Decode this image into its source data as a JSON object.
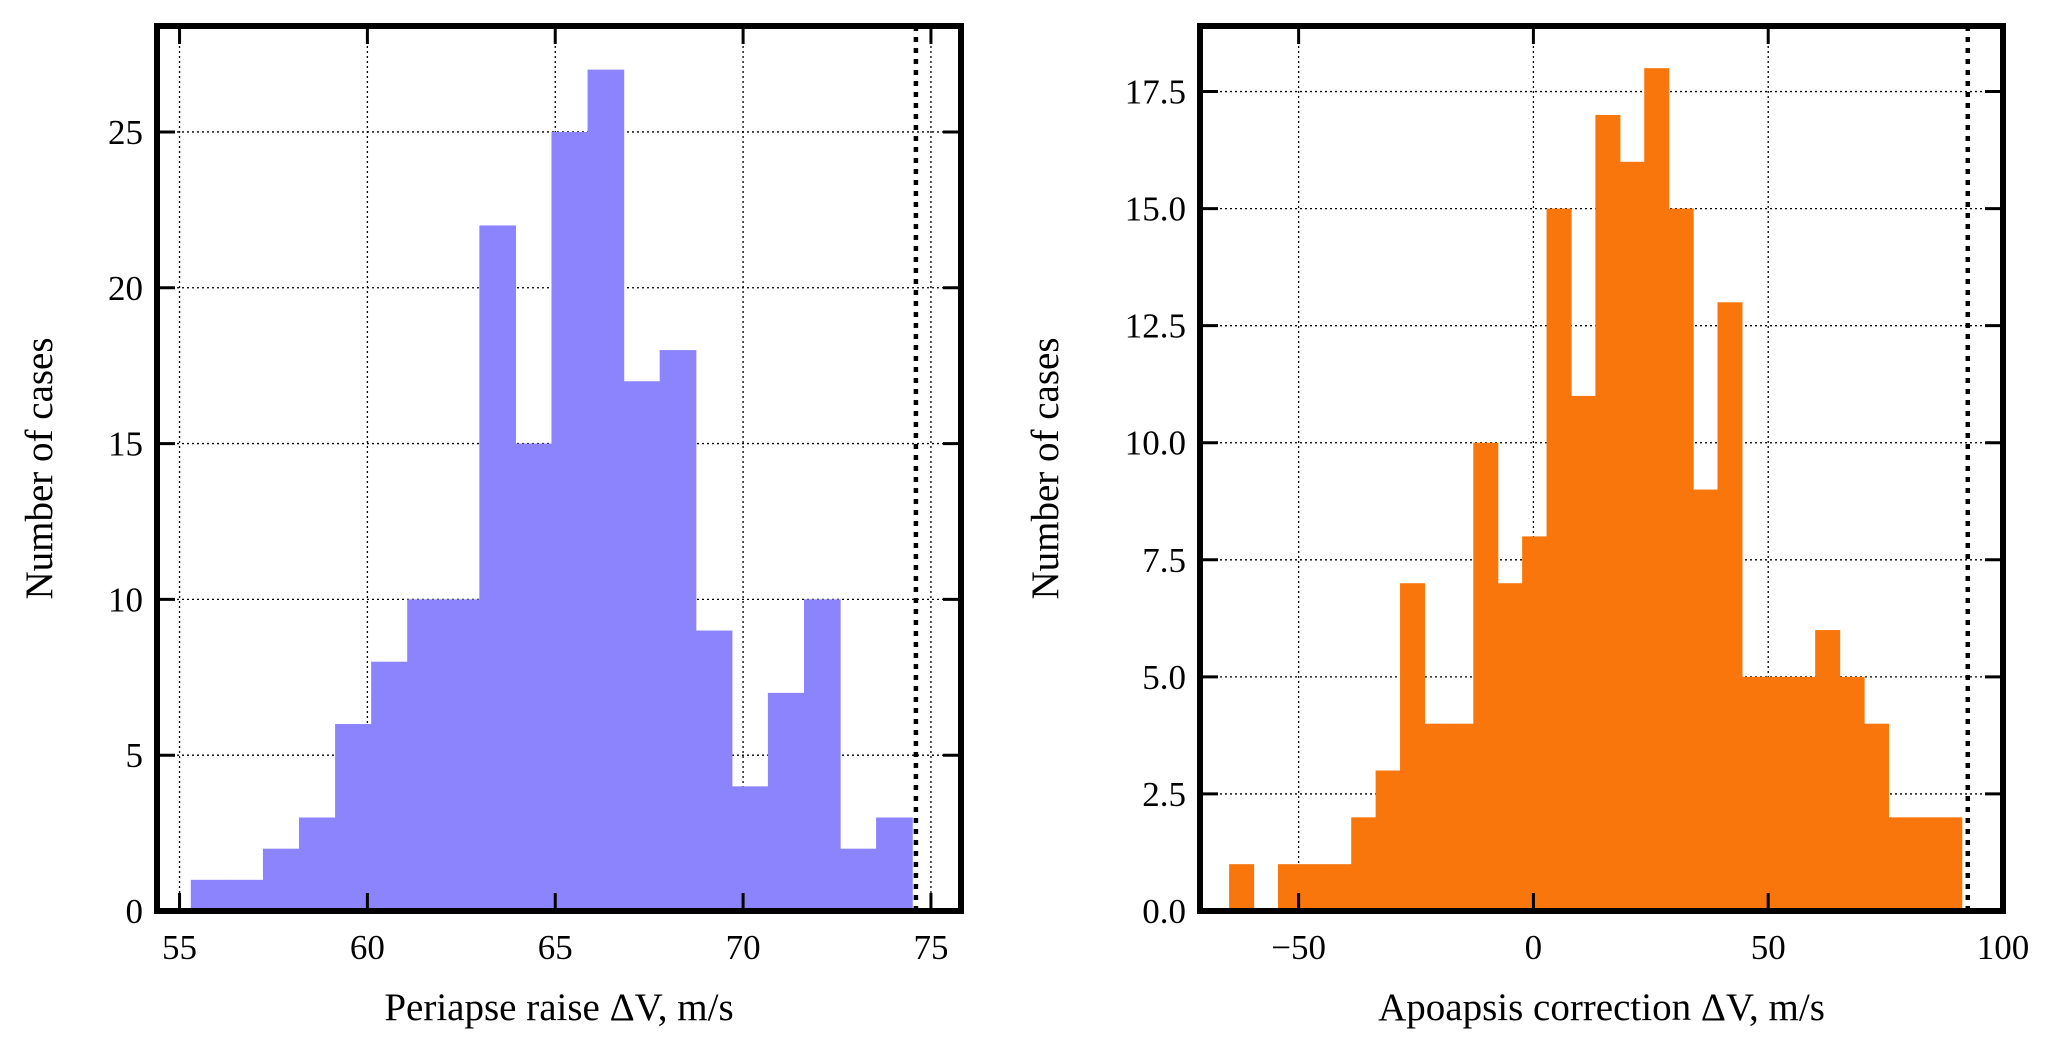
{
  "chart_data": [
    {
      "type": "histogram",
      "xlabel": "Periapse raise ΔV, m/s",
      "ylabel": "Number of cases",
      "xlim": [
        54.4,
        75.8
      ],
      "ylim": [
        0,
        28.4
      ],
      "x_ticks": [
        "55",
        "60",
        "65",
        "70",
        "75"
      ],
      "y_ticks": [
        "0",
        "5",
        "10",
        "15",
        "20",
        "25"
      ],
      "bin_edges": [
        55.3,
        56.26,
        57.22,
        58.18,
        59.14,
        60.1,
        61.06,
        62.02,
        62.98,
        63.94,
        64.9,
        65.86,
        66.82,
        67.78,
        68.74,
        69.7,
        70.66,
        71.62,
        72.58,
        73.54,
        74.5
      ],
      "counts": [
        1,
        1,
        2,
        3,
        6,
        8,
        10,
        10,
        22,
        15,
        25,
        27,
        17,
        18,
        9,
        4,
        7,
        10,
        2,
        3
      ],
      "reference_line": 74.6,
      "color": "#8c84fc",
      "grid": true
    },
    {
      "type": "histogram",
      "xlabel": "Apoapsis correction ΔV, m/s",
      "ylabel": "Number of cases",
      "xlim": [
        -71,
        100
      ],
      "ylim": [
        0,
        18.9
      ],
      "x_ticks": [
        "−50",
        "0",
        "50",
        "100"
      ],
      "y_ticks": [
        "0.0",
        "2.5",
        "5.0",
        "7.5",
        "10.0",
        "12.5",
        "15.0",
        "17.5"
      ],
      "bin_edges": [
        -64.8,
        -59.6,
        -54.4,
        -49.2,
        -44.0,
        -38.8,
        -33.6,
        -28.4,
        -23.2,
        -18.0,
        -12.8,
        -7.6,
        -2.4,
        2.8,
        8.0,
        13.2,
        18.4,
        23.6,
        28.8,
        34.0,
        39.2,
        44.4,
        49.6,
        54.8,
        60.0,
        65.2,
        70.4,
        75.6,
        80.8,
        86.0,
        91.2
      ],
      "counts": [
        1,
        0,
        1,
        1,
        1,
        2,
        3,
        7,
        4,
        4,
        10,
        7,
        8,
        15,
        11,
        17,
        16,
        18,
        15,
        9,
        13,
        5,
        5,
        5,
        6,
        5,
        4,
        2,
        2,
        2
      ],
      "reference_line": 92.5,
      "color": "#f8760c",
      "grid": true
    }
  ]
}
